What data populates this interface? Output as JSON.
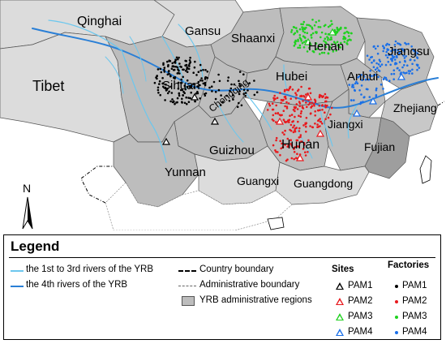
{
  "map": {
    "regions": {
      "qinghai": "Qinghai",
      "gansu": "Gansu",
      "tibet": "Tibet",
      "shaanxi": "Shaanxi",
      "henan": "Henan",
      "jiangsu": "Jiangsu",
      "sichuan": "Sihuan",
      "chongqing": "Chongqing",
      "hubei": "Hubei",
      "anhui": "Anhui",
      "zhejiang": "Zhejiang",
      "jiangxi": "Jiangxi",
      "hunan": "Hunan",
      "guizhou": "Guizhou",
      "yunnan": "Yunnan",
      "fujian": "Fujian",
      "guangxi": "Guangxi",
      "guangdong": "Guangdong"
    },
    "north_label": "N",
    "colors": {
      "pam1": "#000000",
      "pam2": "#e8191d",
      "pam3": "#1fd11f",
      "pam4": "#1a6fe8",
      "yrb_region": "#bdbdbd",
      "other_region": "#dcdcdc",
      "river_main": "#2a7fd6",
      "river_light": "#6cc7ee"
    }
  },
  "legend": {
    "title": "Legend",
    "rivers_1_3": "the 1st to 3rd rivers of the YRB",
    "rivers_4": "the 4th rivers of the YRB",
    "country_boundary": "Country boundary",
    "admin_boundary": "Administrative boundary",
    "yrb_regions": "YRB administrative regions",
    "sites_header": "Sites",
    "factories_header": "Factories",
    "sites": [
      "PAM1",
      "PAM2",
      "PAM3",
      "PAM4"
    ],
    "factories": [
      "PAM1",
      "PAM2",
      "PAM3",
      "PAM4"
    ]
  }
}
